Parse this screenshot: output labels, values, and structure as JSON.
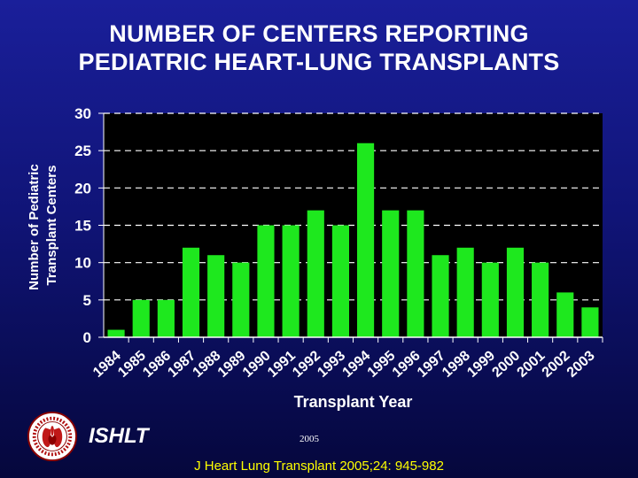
{
  "title_lines": [
    "NUMBER OF CENTERS REPORTING",
    "PEDIATRIC HEART-LUNG TRANSPLANTS"
  ],
  "chart_data": {
    "type": "bar",
    "xlabel": "Transplant Year",
    "ylabel_lines": [
      "Number of Pediatric",
      "Transplant Centers"
    ],
    "categories": [
      "1984",
      "1985",
      "1986",
      "1987",
      "1988",
      "1989",
      "1990",
      "1991",
      "1992",
      "1993",
      "1994",
      "1995",
      "1996",
      "1997",
      "1998",
      "1999",
      "2000",
      "2001",
      "2002",
      "2003"
    ],
    "values": [
      1,
      5,
      5,
      12,
      11,
      10,
      15,
      15,
      17,
      15,
      26,
      17,
      17,
      11,
      12,
      10,
      12,
      10,
      6,
      4
    ],
    "ylim": [
      0,
      30
    ],
    "yticks": [
      0,
      5,
      10,
      15,
      20,
      25,
      30
    ],
    "grid": "dashed horizontal",
    "legend": "none",
    "colors": {
      "bar": "#1ee81e",
      "plot_background": "#000000",
      "tick_labels": "#ffffff",
      "grid": "#ffffff"
    }
  },
  "footer": {
    "org": "ISHLT",
    "year": "2005",
    "citation": "J Heart Lung Transplant 2005;24: 945-982",
    "citation_color": "#ffff00",
    "logo_icon": "ishlt-seal-icon"
  }
}
